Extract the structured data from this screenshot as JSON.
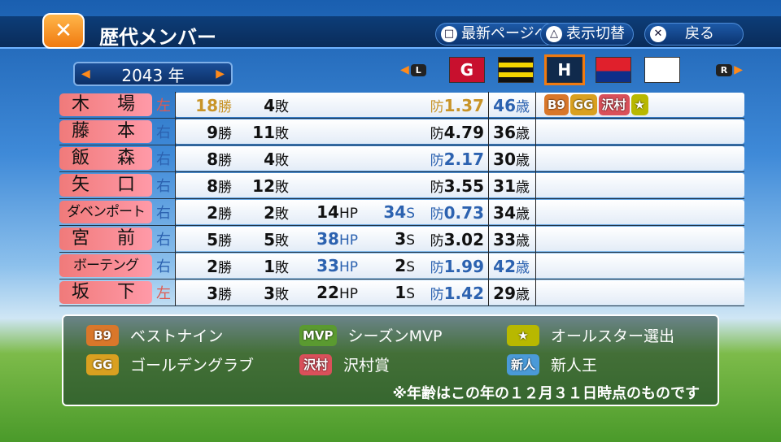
{
  "header": {
    "title": "歴代メンバー",
    "buttons": [
      {
        "icon": "□",
        "label": "最新ページへ"
      },
      {
        "icon": "△",
        "label": "表示切替"
      },
      {
        "icon": "✕",
        "label": "戻る"
      }
    ]
  },
  "year": {
    "value": "2043",
    "unit": "年"
  },
  "teams": {
    "l": "L",
    "r": "R",
    "items": [
      {
        "label": "G",
        "bg": "#c8102e",
        "fg": "#fff"
      },
      {
        "label": "",
        "bg": "repeating-linear-gradient(180deg,#111 0 6px,#f5d400 6px 12px)",
        "fg": "#111"
      },
      {
        "label": "H",
        "bg": "#102a4c",
        "fg": "#fff",
        "selected": true
      },
      {
        "label": "",
        "bg": "linear-gradient(#e0202c 55%,#0d2f8a 55%)",
        "fg": "#fff"
      },
      {
        "label": "",
        "bg": "#fff",
        "fg": "#1a5aa8"
      }
    ]
  },
  "players": [
    {
      "name": "木　場",
      "hand": "左",
      "w": "18",
      "l": "4",
      "hp": "",
      "s": "",
      "era": "1.37",
      "age": "46",
      "awards": [
        "B9",
        "GG",
        "沢村",
        "★"
      ],
      "wc": "#c89428",
      "ec": "#c89428",
      "ac": "#2c62b0"
    },
    {
      "name": "藤　本",
      "hand": "右",
      "w": "9",
      "l": "11",
      "hp": "",
      "s": "",
      "era": "4.79",
      "age": "36",
      "awards": []
    },
    {
      "name": "飯　森",
      "hand": "右",
      "w": "8",
      "l": "4",
      "hp": "",
      "s": "",
      "era": "2.17",
      "age": "30",
      "awards": [],
      "ec": "#2c62b0"
    },
    {
      "name": "矢　口",
      "hand": "右",
      "w": "8",
      "l": "12",
      "hp": "",
      "s": "",
      "era": "3.55",
      "age": "31",
      "awards": []
    },
    {
      "name": "ダベンポート",
      "hand": "右",
      "w": "2",
      "l": "2",
      "hp": "14",
      "s": "34",
      "era": "0.73",
      "age": "34",
      "awards": [],
      "sc": "#2c62b0",
      "ec": "#2c62b0"
    },
    {
      "name": "宮　前",
      "hand": "右",
      "w": "5",
      "l": "5",
      "hp": "38",
      "s": "3",
      "era": "3.02",
      "age": "33",
      "awards": [],
      "hc": "#2c62b0"
    },
    {
      "name": "ボーテング",
      "hand": "右",
      "w": "2",
      "l": "1",
      "hp": "33",
      "s": "2",
      "era": "1.99",
      "age": "42",
      "awards": [],
      "hc": "#2c62b0",
      "ec": "#2c62b0",
      "ac": "#2c62b0"
    },
    {
      "name": "坂　下",
      "hand": "左",
      "w": "3",
      "l": "3",
      "hp": "22",
      "s": "1",
      "era": "1.42",
      "age": "29",
      "awards": [],
      "ec": "#2c62b0"
    }
  ],
  "units": {
    "w": "勝",
    "l": "敗",
    "hp": "HP",
    "s": "S",
    "era": "防",
    "age": "歳"
  },
  "legend": {
    "items": [
      {
        "badge": "B9",
        "label": "ベストナイン",
        "color": "#d9772a"
      },
      {
        "badge": "MVP",
        "label": "シーズンMVP",
        "color": "#5a9a30"
      },
      {
        "badge": "★",
        "label": "オールスター選出",
        "color": "#b8b800"
      },
      {
        "badge": "GG",
        "label": "ゴールデングラブ",
        "color": "#d9a020"
      },
      {
        "badge": "沢村",
        "label": "沢村賞",
        "color": "#d9505a"
      },
      {
        "badge": "新人",
        "label": "新人王",
        "color": "#4a9ad8"
      }
    ],
    "note": "※年齢はこの年の１２月３１日時点のものです"
  }
}
